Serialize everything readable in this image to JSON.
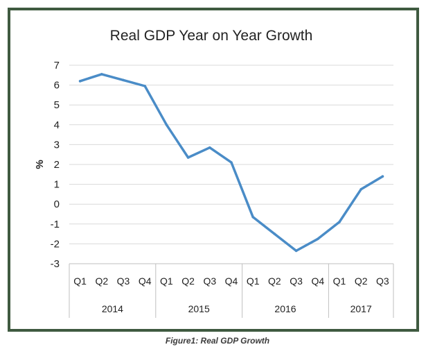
{
  "chart_data": {
    "type": "line",
    "title": "Real GDP Year on Year Growth",
    "xlabel": "",
    "ylabel": "%",
    "ylim": [
      -3,
      7
    ],
    "yticks": [
      -3,
      -2,
      -1,
      0,
      1,
      2,
      3,
      4,
      5,
      6,
      7
    ],
    "grid": true,
    "categories": [
      "Q1",
      "Q2",
      "Q3",
      "Q4",
      "Q1",
      "Q2",
      "Q3",
      "Q4",
      "Q1",
      "Q2",
      "Q3",
      "Q4",
      "Q1",
      "Q2",
      "Q3"
    ],
    "years": [
      {
        "label": "2014",
        "quarters": 4
      },
      {
        "label": "2015",
        "quarters": 4
      },
      {
        "label": "2016",
        "quarters": 4
      },
      {
        "label": "2017",
        "quarters": 3
      }
    ],
    "series": [
      {
        "values": [
          6.2,
          6.55,
          6.25,
          5.95,
          4.0,
          2.35,
          2.85,
          2.1,
          -0.65,
          -1.5,
          -2.35,
          -1.75,
          -0.9,
          0.75,
          1.4
        ],
        "color": "#4a8cc7"
      }
    ]
  },
  "caption": "Figure1: Real GDP Growth"
}
